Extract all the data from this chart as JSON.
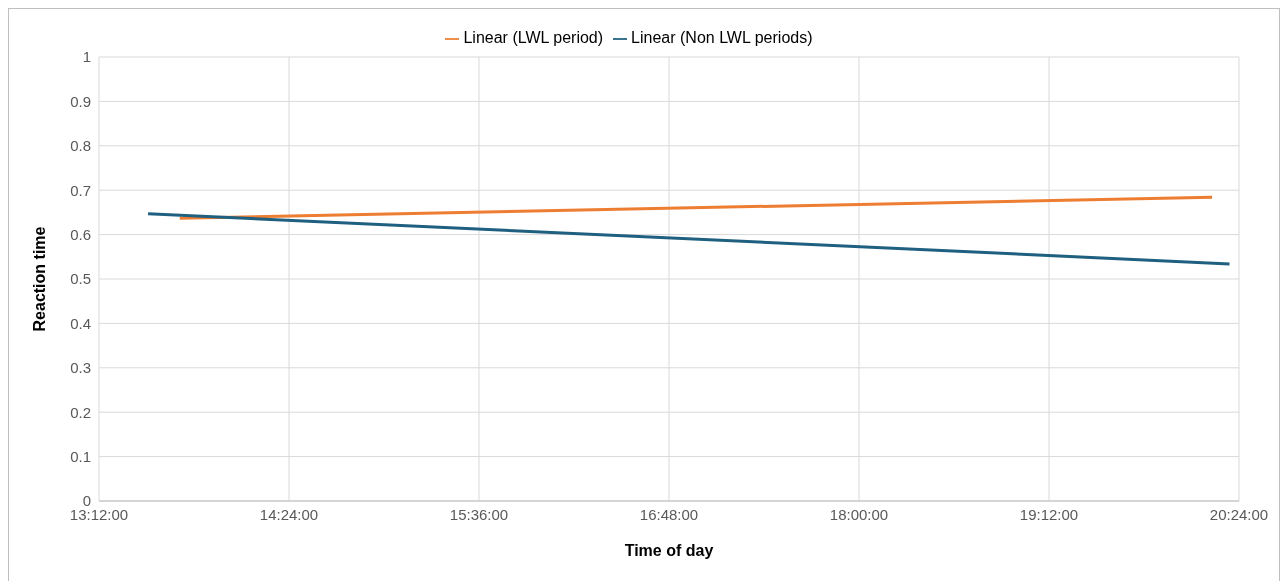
{
  "chart_data": {
    "type": "line",
    "xlabel": "Time of day",
    "ylabel": "Reaction time",
    "series": [
      {
        "name": "Linear (LWL period)",
        "color": "#ed7d31",
        "x": [
          13.71,
          20.23
        ],
        "values": [
          0.637,
          0.684
        ]
      },
      {
        "name": "Linear (Non LWL periods)",
        "color": "#1f5f7f",
        "x": [
          13.51,
          20.34
        ],
        "values": [
          0.647,
          0.534
        ]
      }
    ],
    "xlim": [
      13.2,
      20.4
    ],
    "xticks": [
      {
        "value": 13.2,
        "label": "13:12:00"
      },
      {
        "value": 14.4,
        "label": "14:24:00"
      },
      {
        "value": 15.6,
        "label": "15:36:00"
      },
      {
        "value": 16.8,
        "label": "16:48:00"
      },
      {
        "value": 18,
        "label": "18:00:00"
      },
      {
        "value": 19.2,
        "label": "19:12:00"
      },
      {
        "value": 20.4,
        "label": "20:24:00"
      }
    ],
    "ylim": [
      0,
      1
    ],
    "yticks": [
      0,
      0.1,
      0.2,
      0.3,
      0.4,
      0.5,
      0.6,
      0.7,
      0.8,
      0.9,
      1
    ],
    "grid": true,
    "legend": "top",
    "marker": "none",
    "line_style": "solid"
  }
}
